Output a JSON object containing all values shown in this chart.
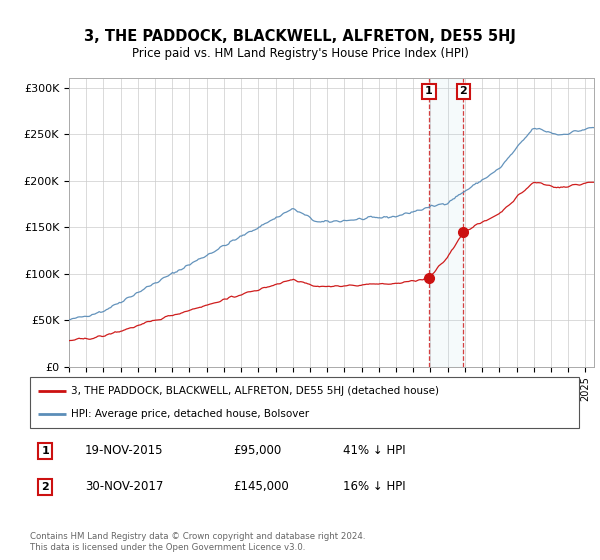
{
  "title": "3, THE PADDOCK, BLACKWELL, ALFRETON, DE55 5HJ",
  "subtitle": "Price paid vs. HM Land Registry's House Price Index (HPI)",
  "ylabel_ticks": [
    "£0",
    "£50K",
    "£100K",
    "£150K",
    "£200K",
    "£250K",
    "£300K"
  ],
  "ytick_values": [
    0,
    50000,
    100000,
    150000,
    200000,
    250000,
    300000
  ],
  "ylim": [
    0,
    310000
  ],
  "hpi_color": "#5b8db8",
  "price_color": "#cc1111",
  "annotation1_date": "19-NOV-2015",
  "annotation1_price": "£95,000",
  "annotation1_pct": "41% ↓ HPI",
  "annotation2_date": "30-NOV-2017",
  "annotation2_price": "£145,000",
  "annotation2_pct": "16% ↓ HPI",
  "legend_label1": "3, THE PADDOCK, BLACKWELL, ALFRETON, DE55 5HJ (detached house)",
  "legend_label2": "HPI: Average price, detached house, Bolsover",
  "footer1": "Contains HM Land Registry data © Crown copyright and database right 2024.",
  "footer2": "This data is licensed under the Open Government Licence v3.0.",
  "sale1_t": 2015.917,
  "sale1_p": 95000,
  "sale2_t": 2017.917,
  "sale2_p": 145000
}
